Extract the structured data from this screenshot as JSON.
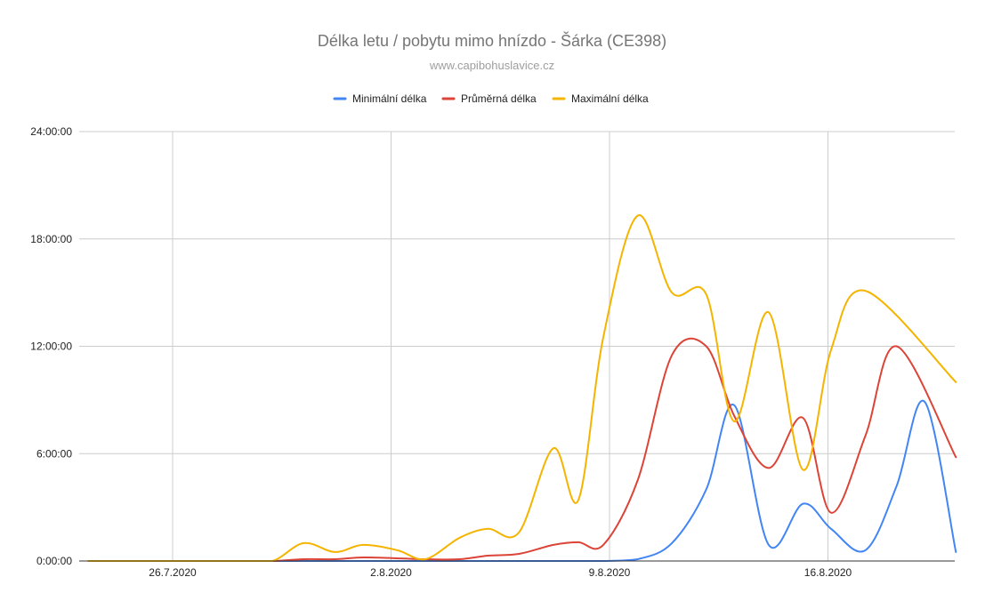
{
  "chart_data": {
    "type": "line",
    "title": "Délka letu / pobytu mimo hnízdo - Šárka (CE398)",
    "subtitle": "www.capibohuslavice.cz",
    "xlabel": "",
    "ylabel": "",
    "legend_position": "top",
    "grid": true,
    "x_ticks": [
      {
        "day": 26,
        "label": "26.7.2020"
      },
      {
        "day": 33,
        "label": "2.8.2020"
      },
      {
        "day": 40,
        "label": "9.8.2020"
      },
      {
        "day": 47,
        "label": "16.8.2020"
      }
    ],
    "y_ticks": [
      {
        "value": 0,
        "label": "0:00:00"
      },
      {
        "value": 6,
        "label": "6:00:00"
      },
      {
        "value": 12,
        "label": "12:00:00"
      },
      {
        "value": 18,
        "label": "18:00:00"
      },
      {
        "value": 24,
        "label": "24:00:00"
      }
    ],
    "ylim": [
      0,
      24
    ],
    "xlim": [
      23.3,
      51.3
    ],
    "x": [
      23.3,
      24.1,
      25.2,
      26.2,
      27.3,
      28.1,
      29.2,
      30.2,
      31.2,
      32.1,
      33.2,
      34.1,
      35.2,
      36.1,
      37.1,
      38.2,
      39.0,
      39.8,
      40.9,
      42.0,
      43.1,
      44.0,
      45.1,
      46.2,
      47.1,
      48.2,
      49.2,
      50.1,
      51.1
    ],
    "series": [
      {
        "name": "Minimální délka",
        "color": "#4285f4",
        "values": [
          0,
          0,
          0,
          0,
          0,
          0,
          0,
          0,
          0,
          0,
          0,
          0,
          0,
          0,
          0,
          0,
          0,
          0,
          0.1,
          1.0,
          4.0,
          8.7,
          0.9,
          3.2,
          1.8,
          0.6,
          4.2,
          8.9,
          0.5
        ]
      },
      {
        "name": "Průměrná délka",
        "color": "#db4437",
        "values": [
          0,
          0,
          0,
          0,
          0,
          0,
          0,
          0.1,
          0.1,
          0.2,
          0.15,
          0.1,
          0.1,
          0.3,
          0.4,
          0.9,
          1.05,
          0.9,
          4.5,
          11.5,
          12.0,
          8.1,
          5.2,
          8.0,
          2.7,
          7.0,
          12.0,
          5.8,
          5.8
        ]
      },
      {
        "name": "Maximální délka",
        "color": "#f4b400",
        "values": [
          0,
          0,
          0,
          0,
          0,
          0,
          0,
          1.0,
          0.5,
          0.9,
          0.6,
          0.1,
          1.3,
          1.8,
          1.6,
          6.3,
          3.4,
          12.5,
          19.3,
          15.0,
          14.9,
          7.8,
          13.9,
          5.1,
          11.8,
          15.1,
          10.0,
          10.0,
          10.0
        ]
      }
    ]
  }
}
